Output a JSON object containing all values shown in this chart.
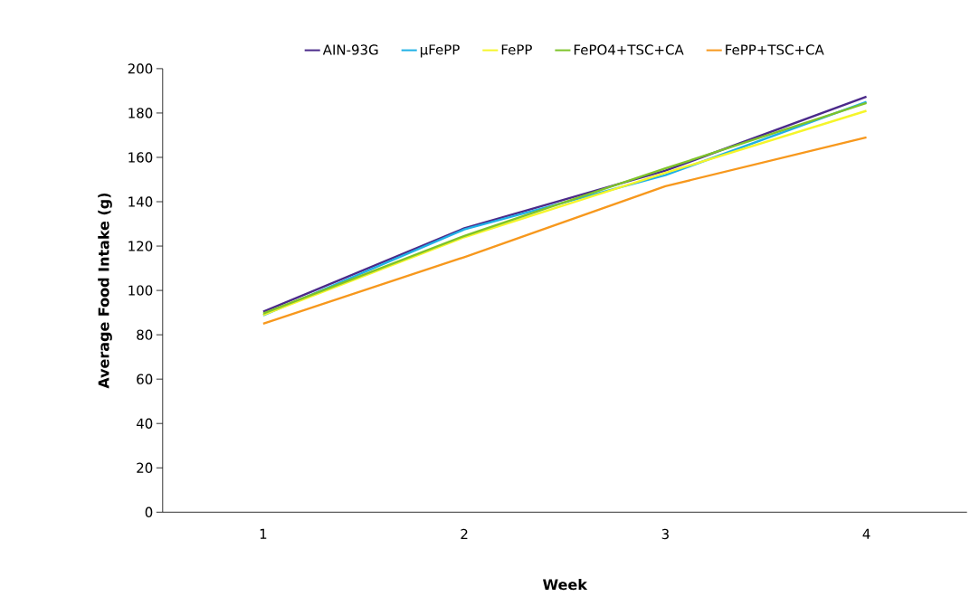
{
  "chart_data": {
    "type": "line",
    "xlabel": "Week",
    "ylabel": "Average Food Intake (g)",
    "categories": [
      "1",
      "2",
      "3",
      "4"
    ],
    "ylim": [
      0,
      200
    ],
    "yticks": [
      0,
      20,
      40,
      60,
      80,
      100,
      120,
      140,
      160,
      180,
      200
    ],
    "grid": false,
    "legend": "top",
    "marker": "none",
    "line_style": "solid",
    "series": [
      {
        "name": "AIN-93G",
        "color": "#4b2a8a",
        "values": [
          90.4,
          128,
          154,
          187.4
        ]
      },
      {
        "name": "µFePP",
        "color": "#1fb0e6",
        "values": [
          88.8,
          127.5,
          152,
          185
        ]
      },
      {
        "name": "FePP",
        "color": "#f5f52a",
        "values": [
          89,
          124,
          153,
          181
        ]
      },
      {
        "name": "FePO4+TSC+CA",
        "color": "#7ec32a",
        "values": [
          89.6,
          124.6,
          155,
          184.5
        ]
      },
      {
        "name": "FePP+TSC+CA",
        "color": "#f7981d",
        "values": [
          85,
          115,
          147,
          169
        ]
      }
    ]
  }
}
